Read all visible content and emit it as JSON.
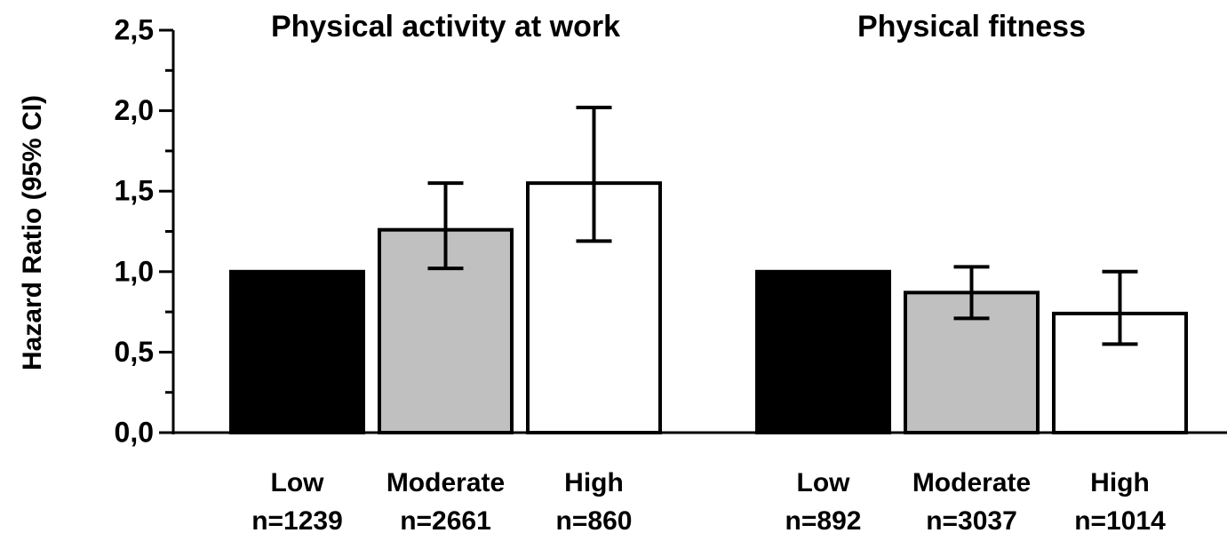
{
  "chart_data": [
    {
      "type": "bar",
      "title": "Physical activity at work",
      "ylabel": "Hazard Ratio (95% CI)",
      "categories": [
        "Low",
        "Moderate",
        "High"
      ],
      "n_labels": [
        "n=1239",
        "n=2661",
        "n=860"
      ],
      "values": [
        1.0,
        1.26,
        1.55
      ],
      "ci_low": [
        null,
        1.02,
        1.19
      ],
      "ci_high": [
        null,
        1.55,
        2.02
      ],
      "colors": [
        "#000000",
        "#c0c0c0",
        "#ffffff"
      ],
      "ylim": [
        0,
        2.5
      ],
      "yticks": [
        {
          "value": 0,
          "label": "0,0"
        },
        {
          "value": 0.5,
          "label": "0,5"
        },
        {
          "value": 1.0,
          "label": "1,0"
        },
        {
          "value": 1.5,
          "label": "1,5"
        },
        {
          "value": 2.0,
          "label": "2,0"
        },
        {
          "value": 2.5,
          "label": "2,5"
        }
      ],
      "minor_yticks": [
        0.25,
        0.75,
        1.25,
        1.75,
        2.25
      ]
    },
    {
      "type": "bar",
      "title": "Physical fitness",
      "categories": [
        "Low",
        "Moderate",
        "High"
      ],
      "n_labels": [
        "n=892",
        "n=3037",
        "n=1014"
      ],
      "values": [
        1.0,
        0.87,
        0.74
      ],
      "ci_low": [
        null,
        0.71,
        0.55
      ],
      "ci_high": [
        null,
        1.03,
        1.0
      ],
      "colors": [
        "#000000",
        "#c0c0c0",
        "#ffffff"
      ],
      "ylim": [
        0,
        2.5
      ]
    }
  ]
}
